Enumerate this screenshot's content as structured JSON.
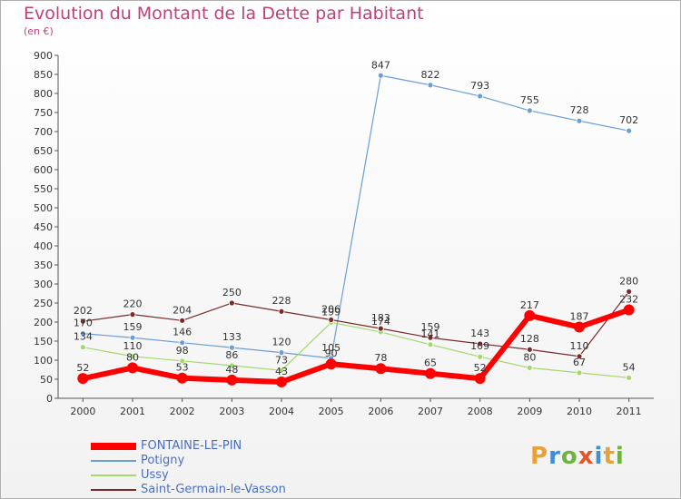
{
  "title": "Evolution du Montant de la Dette par Habitant",
  "subtitle": "(en €)",
  "logo": {
    "text": "Proxiti",
    "colors": [
      "#e8a23a",
      "#3c8fd8",
      "#6db33f",
      "#e0562a",
      "#3c8fd8",
      "#e8a23a",
      "#6db33f"
    ]
  },
  "chart_data": {
    "type": "line",
    "x": [
      "2000",
      "2001",
      "2002",
      "2003",
      "2004",
      "2005",
      "2006",
      "2007",
      "2008",
      "2009",
      "2010",
      "2011"
    ],
    "ylim": [
      0,
      900
    ],
    "yticks": [
      "0",
      "50",
      "100",
      "150",
      "200",
      "250",
      "300",
      "350",
      "400",
      "450",
      "500",
      "550",
      "600",
      "650",
      "700",
      "750",
      "800",
      "850",
      "900"
    ],
    "grid": false,
    "legend_position": "bottom-left",
    "series": [
      {
        "name": "FONTAINE-LE-PIN",
        "color": "#ff0000",
        "values": [
          52,
          80,
          53,
          48,
          43,
          90,
          78,
          65,
          52,
          217,
          187,
          232
        ],
        "labels": [
          "52",
          "80",
          "53",
          "48",
          "43",
          "90",
          "78",
          "65",
          "52",
          "217",
          "187",
          "232"
        ]
      },
      {
        "name": "Potigny",
        "color": "#6a9fd4",
        "values": [
          170,
          159,
          146,
          133,
          120,
          105,
          847,
          822,
          793,
          755,
          728,
          702
        ],
        "labels": [
          "170",
          "159",
          "146",
          "133",
          "120",
          "105",
          "847",
          "822",
          "793",
          "755",
          "728",
          "702"
        ]
      },
      {
        "name": "Ussy",
        "color": "#a3d86a",
        "values": [
          134,
          110,
          98,
          86,
          73,
          199,
          174,
          141,
          109,
          80,
          67,
          54
        ],
        "labels": [
          "134",
          "110",
          "98",
          "86",
          "73",
          "199",
          "174",
          "141",
          "109",
          "80",
          "67",
          "54"
        ]
      },
      {
        "name": "Saint-Germain-le-Vasson",
        "color": "#7a2a2a",
        "values": [
          202,
          220,
          204,
          250,
          228,
          206,
          183,
          159,
          143,
          128,
          110,
          280
        ],
        "labels": [
          "202",
          "220",
          "204",
          "250",
          "228",
          "206",
          "183",
          "159",
          "143",
          "128",
          "110",
          "280"
        ]
      }
    ]
  }
}
